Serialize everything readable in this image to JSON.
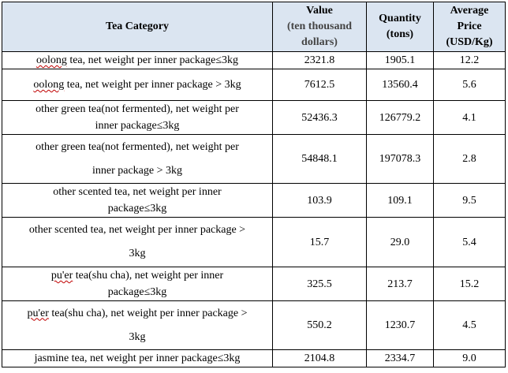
{
  "table": {
    "headers": {
      "category": "Tea Category",
      "value_line1": "Value",
      "value_line2": "(ten thousand",
      "value_line3": "dollars)",
      "quantity_line1": "Quantity",
      "quantity_line2": "(tons)",
      "price_line1": "Average",
      "price_line2": "Price",
      "price_line3": "(USD/Kg)"
    },
    "rows": [
      {
        "cat_a": "oolong",
        "cat_b": " tea, net weight per inner package≤3kg",
        "cat_c": "",
        "value": "2321.8",
        "quantity": "1905.1",
        "price": "12.2"
      },
      {
        "cat_a": "oolong",
        "cat_b": " tea, net weight per inner package > 3kg",
        "cat_c": "",
        "value": "7612.5",
        "quantity": "13560.4",
        "price": "5.6"
      },
      {
        "cat_a": "other green tea(not fermented), net weight per",
        "cat_b": "",
        "cat_c": "inner package≤3kg",
        "value": "52436.3",
        "quantity": "126779.2",
        "price": "4.1"
      },
      {
        "cat_a": "other green tea(not fermented), net weight per",
        "cat_b": "",
        "cat_c": "inner package > 3kg",
        "value": "54848.1",
        "quantity": "197078.3",
        "price": "2.8"
      },
      {
        "cat_a": "other scented tea, net weight per inner",
        "cat_b": "",
        "cat_c": "package≤3kg",
        "value": "103.9",
        "quantity": "109.1",
        "price": "9.5"
      },
      {
        "cat_a": "other scented tea, net weight per inner package >",
        "cat_b": "",
        "cat_c": "3kg",
        "value": "15.7",
        "quantity": "29.0",
        "price": "5.4"
      },
      {
        "cat_a": "pu'er",
        "cat_b": " tea(shu cha), net weight per inner",
        "cat_c": "package≤3kg",
        "value": "325.5",
        "quantity": "213.7",
        "price": "15.2"
      },
      {
        "cat_a": "pu'er",
        "cat_b": " tea(shu cha), net weight per inner package >",
        "cat_c": "3kg",
        "value": "550.2",
        "quantity": "1230.7",
        "price": "4.5"
      },
      {
        "cat_a": "jasmine tea, net weight per inner package≤3kg",
        "cat_b": "",
        "cat_c": "",
        "value": "2104.8",
        "quantity": "2334.7",
        "price": "9.0"
      }
    ]
  }
}
